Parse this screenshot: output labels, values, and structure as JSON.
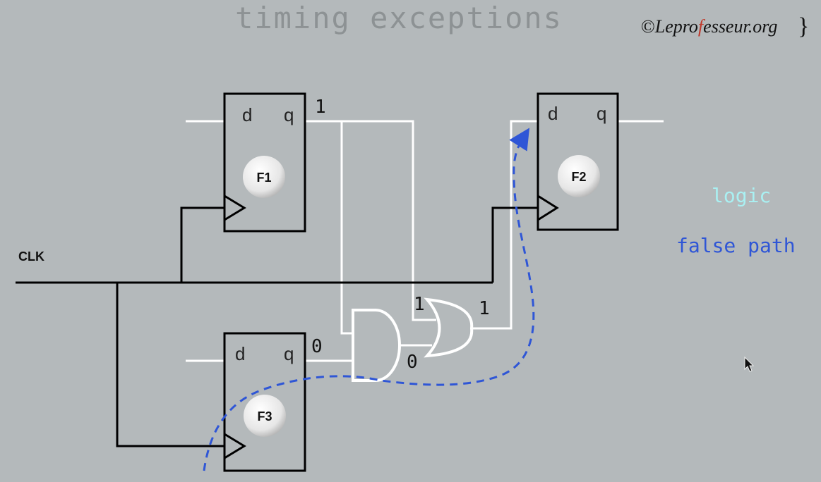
{
  "title": "timing exceptions",
  "copyright": {
    "symbol": "©",
    "brand_pre": "Lepro",
    "brand_accent": "f",
    "brand_post": "esseur.org",
    "brace": "}"
  },
  "clk_label": "CLK",
  "flipflops": {
    "f1": {
      "name": "F1",
      "d": "d",
      "q": "q"
    },
    "f2": {
      "name": "F2",
      "d": "d",
      "q": "q"
    },
    "f3": {
      "name": "F3",
      "d": "d",
      "q": "q"
    }
  },
  "signals": {
    "f1_q_value": "1",
    "f3_q_value": "0",
    "or_in_top": "1",
    "or_in_bottom": "0",
    "or_out": "1"
  },
  "legend": {
    "logic": "logic",
    "false_path": "false path"
  },
  "colors": {
    "background": "#b4b9bb",
    "wire_white": "#ffffff",
    "wire_black": "#000000",
    "title": "#8d9294",
    "logic": "#a9f0f2",
    "false_path": "#2f56d6"
  }
}
